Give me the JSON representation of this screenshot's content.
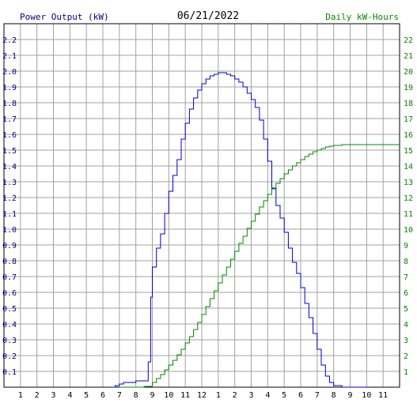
{
  "chart_data": {
    "type": "line",
    "title": "06/21/2022",
    "left_axis_label": "Power Output (kW)",
    "right_axis_label": "Daily kW-Hours",
    "x_tick_labels": [
      "1",
      "2",
      "3",
      "4",
      "5",
      "6",
      "7",
      "8",
      "9",
      "10",
      "11",
      "12",
      "1",
      "2",
      "3",
      "4",
      "5",
      "6",
      "7",
      "8",
      "9",
      "10",
      "11"
    ],
    "x_range_hours": [
      0,
      24
    ],
    "left_ticks": [
      "0.1",
      "0.2",
      "0.3",
      "0.4",
      "0.5",
      "0.6",
      "0.7",
      "0.8",
      "0.9",
      "1.0",
      "1.1",
      "1.2",
      "1.3",
      "1.4",
      "1.5",
      "1.6",
      "1.7",
      "1.8",
      "1.9",
      "2.0",
      "2.1",
      "2.2"
    ],
    "right_ticks": [
      "1",
      "2",
      "3",
      "4",
      "5",
      "6",
      "7",
      "8",
      "9",
      "10",
      "11",
      "12",
      "13",
      "14",
      "15",
      "16",
      "17",
      "18",
      "19",
      "20",
      "21",
      "22"
    ],
    "ylim_left": [
      0,
      2.3
    ],
    "ylim_right": [
      0,
      23
    ],
    "grid": true,
    "series": [
      {
        "name": "Power Output (kW)",
        "axis": "left",
        "color": "#0000cc",
        "step": true,
        "points": [
          [
            6.5,
            0.0
          ],
          [
            6.75,
            0.01
          ],
          [
            7.0,
            0.02
          ],
          [
            7.25,
            0.03
          ],
          [
            7.5,
            0.03
          ],
          [
            7.75,
            0.03
          ],
          [
            8.0,
            0.04
          ],
          [
            8.25,
            0.04
          ],
          [
            8.5,
            0.04
          ],
          [
            8.75,
            0.16
          ],
          [
            8.9,
            0.57
          ],
          [
            9.0,
            0.76
          ],
          [
            9.25,
            0.88
          ],
          [
            9.5,
            0.97
          ],
          [
            9.75,
            1.1
          ],
          [
            10.0,
            1.24
          ],
          [
            10.25,
            1.34
          ],
          [
            10.5,
            1.44
          ],
          [
            10.75,
            1.57
          ],
          [
            11.0,
            1.67
          ],
          [
            11.25,
            1.76
          ],
          [
            11.5,
            1.83
          ],
          [
            11.75,
            1.88
          ],
          [
            12.0,
            1.92
          ],
          [
            12.25,
            1.95
          ],
          [
            12.5,
            1.97
          ],
          [
            12.75,
            1.98
          ],
          [
            13.0,
            1.99
          ],
          [
            13.25,
            1.99
          ],
          [
            13.5,
            1.98
          ],
          [
            13.75,
            1.97
          ],
          [
            14.0,
            1.95
          ],
          [
            14.25,
            1.93
          ],
          [
            14.5,
            1.9
          ],
          [
            14.75,
            1.86
          ],
          [
            15.0,
            1.82
          ],
          [
            15.25,
            1.77
          ],
          [
            15.5,
            1.69
          ],
          [
            15.75,
            1.57
          ],
          [
            16.0,
            1.43
          ],
          [
            16.25,
            1.26
          ],
          [
            16.5,
            1.15
          ],
          [
            16.75,
            1.07
          ],
          [
            17.0,
            0.98
          ],
          [
            17.25,
            0.88
          ],
          [
            17.5,
            0.79
          ],
          [
            17.75,
            0.72
          ],
          [
            18.0,
            0.63
          ],
          [
            18.25,
            0.53
          ],
          [
            18.5,
            0.44
          ],
          [
            18.75,
            0.34
          ],
          [
            19.0,
            0.24
          ],
          [
            19.25,
            0.14
          ],
          [
            19.5,
            0.07
          ],
          [
            19.75,
            0.03
          ],
          [
            20.0,
            0.01
          ],
          [
            20.5,
            0.0
          ],
          [
            22.0,
            0.0
          ]
        ]
      },
      {
        "name": "Daily kW-Hours",
        "axis": "right",
        "color": "#008800",
        "step": true,
        "points": [
          [
            7.0,
            0.0
          ],
          [
            8.5,
            0.05
          ],
          [
            9.0,
            0.3
          ],
          [
            9.25,
            0.55
          ],
          [
            9.5,
            0.8
          ],
          [
            9.75,
            1.1
          ],
          [
            10.0,
            1.4
          ],
          [
            10.25,
            1.7
          ],
          [
            10.5,
            2.05
          ],
          [
            10.75,
            2.4
          ],
          [
            11.0,
            2.8
          ],
          [
            11.25,
            3.2
          ],
          [
            11.5,
            3.65
          ],
          [
            11.75,
            4.1
          ],
          [
            12.0,
            4.6
          ],
          [
            12.25,
            5.1
          ],
          [
            12.5,
            5.6
          ],
          [
            12.75,
            6.1
          ],
          [
            13.0,
            6.6
          ],
          [
            13.25,
            7.1
          ],
          [
            13.5,
            7.6
          ],
          [
            13.75,
            8.1
          ],
          [
            14.0,
            8.6
          ],
          [
            14.25,
            9.1
          ],
          [
            14.5,
            9.55
          ],
          [
            14.75,
            10.05
          ],
          [
            15.0,
            10.5
          ],
          [
            15.25,
            10.95
          ],
          [
            15.5,
            11.4
          ],
          [
            15.75,
            11.8
          ],
          [
            16.0,
            12.2
          ],
          [
            16.25,
            12.55
          ],
          [
            16.5,
            12.9
          ],
          [
            16.75,
            13.2
          ],
          [
            17.0,
            13.5
          ],
          [
            17.25,
            13.75
          ],
          [
            17.5,
            14.0
          ],
          [
            17.75,
            14.2
          ],
          [
            18.0,
            14.4
          ],
          [
            18.25,
            14.6
          ],
          [
            18.5,
            14.75
          ],
          [
            18.75,
            14.9
          ],
          [
            19.0,
            15.0
          ],
          [
            19.25,
            15.1
          ],
          [
            19.5,
            15.2
          ],
          [
            19.75,
            15.25
          ],
          [
            20.0,
            15.3
          ],
          [
            20.5,
            15.35
          ],
          [
            24.0,
            15.35
          ]
        ]
      }
    ]
  }
}
